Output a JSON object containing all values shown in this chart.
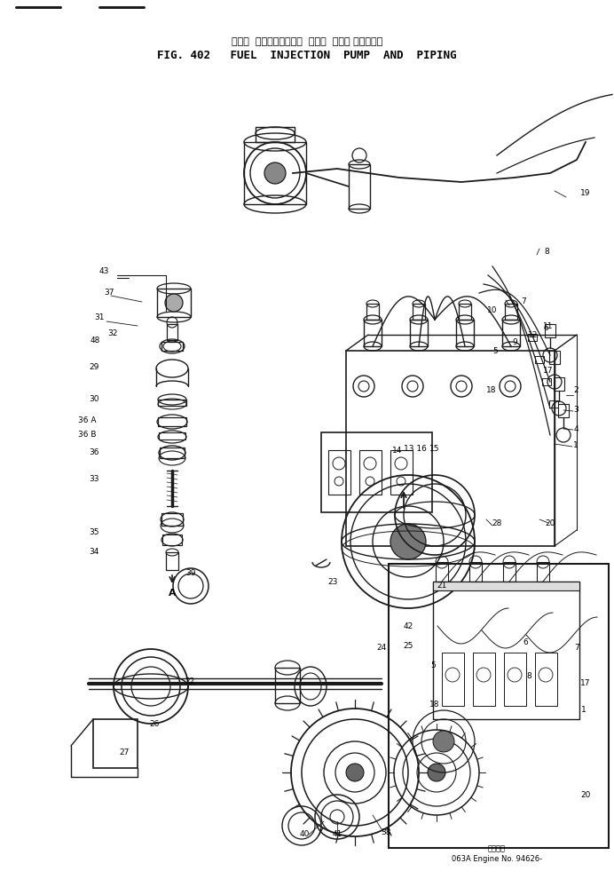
{
  "title_japanese": "フェル  インジェクション  ポンプ  および パイピング",
  "title_english": "FIG. 402   FUEL  INJECTION  PUMP  AND  PIPING",
  "footer_japanese": "適用番号",
  "footer_english": "063A Engine No. 94626-",
  "bg_color": "#ffffff",
  "text_color": "#000000",
  "lc": "#1a1a1a"
}
